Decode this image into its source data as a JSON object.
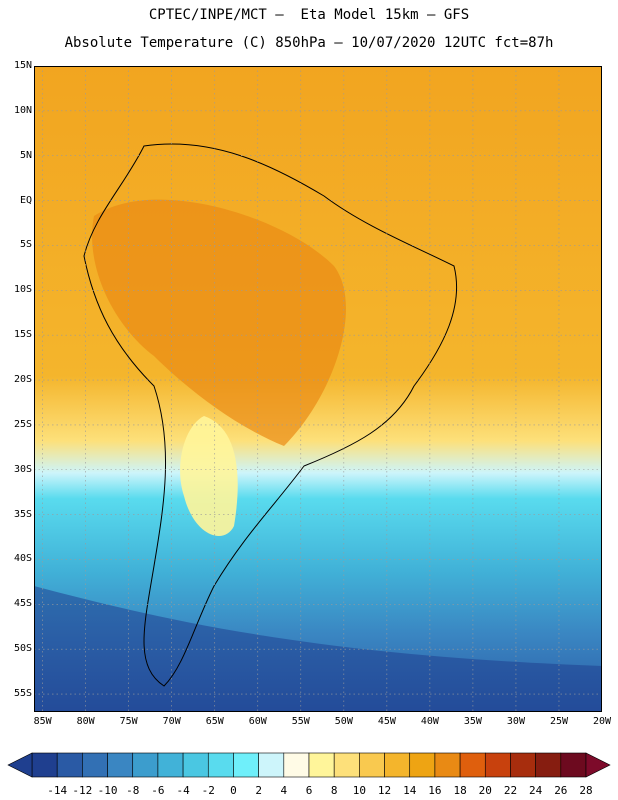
{
  "header": {
    "title_line1": "CPTEC/INPE/MCT –  Eta Model 15km – GFS",
    "title_line2": "Absolute Temperature (C) 850hPa – 10/07/2020 12UTC fct=87h"
  },
  "map": {
    "lat_labels": [
      "15N",
      "10N",
      "5N",
      "EQ",
      "5S",
      "10S",
      "15S",
      "20S",
      "25S",
      "30S",
      "35S",
      "40S",
      "45S",
      "50S",
      "55S"
    ],
    "lon_labels": [
      "85W",
      "80W",
      "75W",
      "70W",
      "65W",
      "60W",
      "55W",
      "50W",
      "45W",
      "40W",
      "35W",
      "30W",
      "25W",
      "20W"
    ],
    "lat_range": [
      15,
      -57
    ],
    "lon_range": [
      -86,
      -20
    ]
  },
  "colorbar": {
    "labels": [
      "-14",
      "-12",
      "-10",
      "-8",
      "-6",
      "-4",
      "-2",
      "0",
      "2",
      "4",
      "6",
      "8",
      "10",
      "12",
      "14",
      "16",
      "18",
      "20",
      "22",
      "24",
      "26",
      "28"
    ],
    "colors": [
      "#1f3f8f",
      "#2a5aa5",
      "#3270b4",
      "#3a86c2",
      "#3c9dcd",
      "#41b2d8",
      "#4ac7e2",
      "#59dbee",
      "#6feffa",
      "#cdf5fb",
      "#fffbe6",
      "#fff59a",
      "#fde07a",
      "#f9c94f",
      "#f4b52c",
      "#eea413",
      "#e98a14",
      "#df5f0d",
      "#c8410d",
      "#a72d0d",
      "#861d10",
      "#6d0a1f"
    ]
  }
}
